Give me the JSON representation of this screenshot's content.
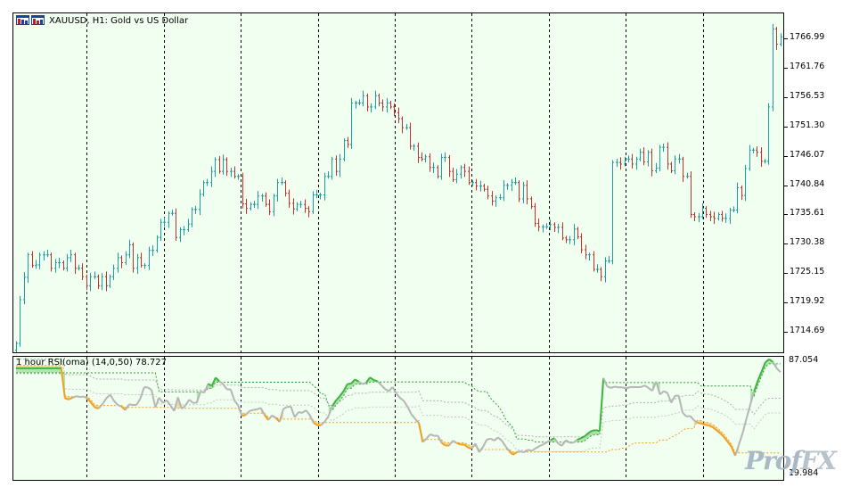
{
  "chart": {
    "symbol_title": "XAUUSD, H1:  Gold vs US Dollar",
    "indicator_title": "1 hour RSI(oma) (14,0,50) 78.727",
    "price_labels": [
      "1766.99",
      "1761.76",
      "1756.53",
      "1751.30",
      "1746.07",
      "1740.84",
      "1735.61",
      "1730.38",
      "1725.15",
      "1719.92",
      "1714.69"
    ],
    "indicator_labels": [
      "87.054",
      "19.984"
    ],
    "colors": {
      "background": "#f0fff0",
      "bull": "#1f9e9e",
      "bear": "#c0312f",
      "rsi_line": "#b5b5b5",
      "rsi_up": "#3cb43c",
      "rsi_down": "#f0a020",
      "upper_band": "#2fa02f",
      "lower_band": "#f0a020"
    },
    "watermark": {
      "part1": "Prof",
      "part2": "FX"
    }
  },
  "chart_data": [
    {
      "type": "candlestick",
      "title": "XAUUSD, H1:  Gold vs US Dollar",
      "ylim": [
        1711,
        1771.5
      ],
      "ticks": [
        1766.99,
        1761.76,
        1756.53,
        1751.3,
        1746.07,
        1740.84,
        1735.61,
        1730.38,
        1725.15,
        1719.92,
        1714.69
      ],
      "period_separators": 9,
      "closes": [
        1712.6,
        1720.4,
        1724.4,
        1728.4,
        1726.5,
        1726.6,
        1728.4,
        1728.4,
        1728.4,
        1726.0,
        1727.0,
        1727.0,
        1726.0,
        1727.9,
        1728.4,
        1726.0,
        1726.0,
        1724.5,
        1722.9,
        1724.5,
        1724.5,
        1722.9,
        1724.5,
        1722.9,
        1724.5,
        1726.0,
        1727.9,
        1727.0,
        1728.4,
        1730.2,
        1726.0,
        1727.9,
        1726.5,
        1726.5,
        1729.2,
        1729.2,
        1731.5,
        1734.2,
        1734.2,
        1735.8,
        1735.8,
        1731.5,
        1732.9,
        1732.9,
        1733.9,
        1736.5,
        1736.5,
        1739.2,
        1741.3,
        1741.3,
        1743.3,
        1745.4,
        1743.3,
        1745.4,
        1743.3,
        1743.3,
        1742.4,
        1742.4,
        1737.5,
        1736.7,
        1737.4,
        1737.4,
        1738.9,
        1738.9,
        1737.4,
        1736.1,
        1738.9,
        1741.3,
        1741.3,
        1739.4,
        1737.6,
        1736.6,
        1737.4,
        1737.4,
        1736.7,
        1736.1,
        1739.1,
        1739.1,
        1739.1,
        1742.4,
        1742.4,
        1745.5,
        1743.3,
        1745.5,
        1748.8,
        1748.1,
        1755.5,
        1755.5,
        1755.5,
        1756.8,
        1754.8,
        1754.8,
        1756.8,
        1755.5,
        1754.8,
        1755.5,
        1754.8,
        1753.8,
        1752.7,
        1751.1,
        1751.1,
        1747.8,
        1747.8,
        1745.8,
        1745.5,
        1745.9,
        1744.0,
        1744.0,
        1742.4,
        1745.8,
        1745.8,
        1743.3,
        1741.8,
        1742.8,
        1744.0,
        1743.3,
        1741.3,
        1741.3,
        1740.7,
        1740.7,
        1740.1,
        1738.9,
        1738.0,
        1738.6,
        1738.6,
        1740.8,
        1740.8,
        1741.3,
        1741.3,
        1738.4,
        1740.8,
        1738.4,
        1737.0,
        1734.0,
        1733.4,
        1733.4,
        1733.4,
        1733.8,
        1733.3,
        1733.3,
        1731.4,
        1731.1,
        1731.1,
        1733.0,
        1731.6,
        1729.3,
        1728.4,
        1728.4,
        1725.8,
        1725.8,
        1724.5,
        1727.3,
        1727.3,
        1744.9,
        1744.9,
        1744.6,
        1745.5,
        1745.5,
        1744.6,
        1745.5,
        1746.7,
        1745.0,
        1746.7,
        1743.4,
        1743.9,
        1747.6,
        1747.6,
        1744.6,
        1743.4,
        1745.5,
        1745.5,
        1742.4,
        1742.4,
        1735.6,
        1735.2,
        1735.2,
        1736.7,
        1735.6,
        1735.2,
        1734.9,
        1735.6,
        1734.9,
        1734.9,
        1736.4,
        1736.4,
        1740.4,
        1739.0,
        1743.8,
        1747.1,
        1747.1,
        1746.7,
        1745.1,
        1745.1,
        1754.8,
        1768.7,
        1766.0,
        1767.3
      ]
    },
    {
      "type": "line",
      "title": "1 hour RSI(oma) (14,0,50) 78.727",
      "ylim": [
        19.984,
        87.054
      ],
      "series": [
        {
          "values": [
            80.8,
            80.8,
            80.8,
            80.8,
            80.8,
            80.8,
            80.8,
            80.8,
            80.8,
            80.8,
            80.8,
            80.8,
            80.8,
            64.4,
            63.8,
            64.7,
            65.6,
            65.1,
            65.4,
            64.2,
            61.8,
            59.3,
            59.0,
            61.4,
            64.5,
            66.4,
            63.1,
            60.8,
            60.0,
            58.0,
            61.1,
            60.8,
            60.8,
            64.2,
            70.4,
            70.4,
            68.9,
            59.5,
            64.8,
            61.9,
            63.4,
            60.6,
            57.5,
            65.0,
            58.7,
            60.6,
            63.7,
            61.9,
            62.0,
            68.2,
            67.5,
            72.3,
            71.2,
            75.7,
            73.7,
            72.1,
            69.3,
            69.3,
            63.2,
            60.5,
            54.8,
            55.4,
            57.5,
            58.1,
            58.4,
            59.2,
            55.3,
            52.6,
            55.1,
            53.7,
            51.6,
            58.7,
            59.7,
            59.9,
            54.1,
            56.9,
            56.5,
            57.9,
            55.3,
            51.1,
            49.7,
            49.7,
            51.8,
            54.7,
            60.3,
            63.3,
            65.6,
            68.4,
            72.2,
            72.4,
            74.7,
            73.5,
            72.2,
            73.0,
            75.8,
            74.4,
            73.7,
            71.6,
            69.5,
            68.3,
            70.6,
            67.0,
            64.6,
            63.0,
            59.7,
            55.7,
            53.2,
            50.8,
            40.5,
            42.5,
            44.8,
            44.0,
            44.1,
            40.2,
            38.7,
            38.7,
            41.4,
            40.1,
            39.2,
            39.2,
            37.7,
            36.9,
            39.8,
            35.0,
            37.9,
            41.8,
            42.5,
            41.4,
            43.1,
            41.4,
            38.3,
            35.5,
            33.7,
            35.1,
            35.5,
            35.0,
            36.4,
            35.8,
            37.2,
            38.4,
            39.3,
            40.5,
            41.7,
            42.7,
            39.7,
            38.6,
            41.6,
            40.3,
            40.2,
            41.8,
            42.7,
            43.7,
            45.5,
            46.8,
            47.1,
            46.5,
            75.5,
            70.9,
            70.1,
            70.8,
            70.4,
            70.4,
            69.8,
            70.5,
            70.6,
            70.5,
            70.6,
            71.4,
            70.0,
            68.5,
            73.6,
            66.5,
            68.3,
            67.4,
            62.0,
            65.8,
            65.9,
            56.7,
            54.5,
            54.8,
            52.6,
            51.1,
            50.7,
            50.0,
            49.6,
            48.7,
            47.1,
            45.4,
            43.3,
            40.7,
            38.0,
            33.2,
            39.4,
            45.7,
            53.5,
            61.0,
            68.2,
            74.0,
            79.0,
            84.0,
            85.7,
            84.3,
            80.8,
            78.7
          ]
        }
      ]
    }
  ]
}
